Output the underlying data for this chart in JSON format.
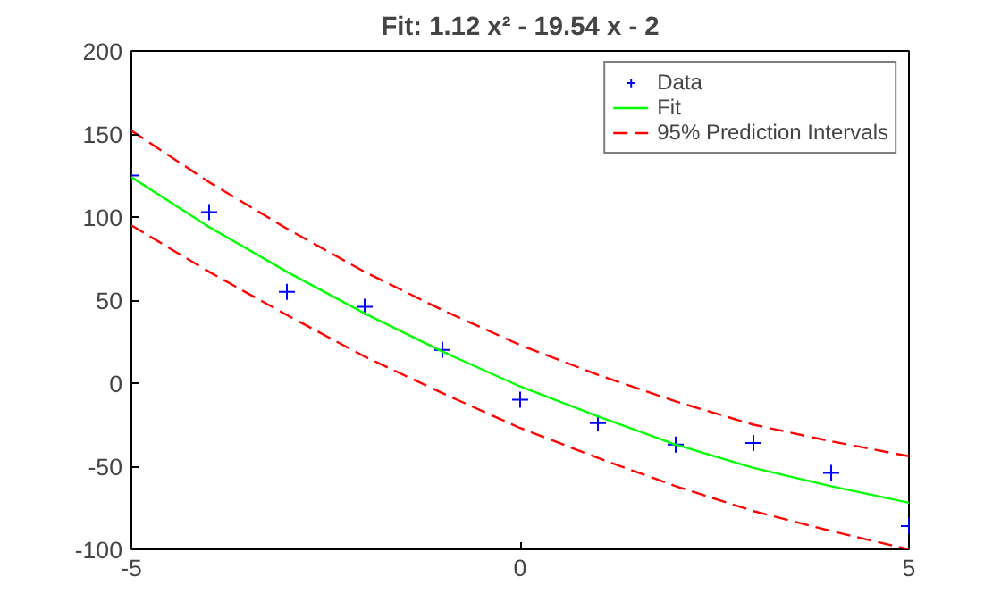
{
  "chart_data": {
    "type": "line",
    "title": "Fit: 1.12 x² - 19.54 x - 2",
    "x": [
      -5,
      -4,
      -3,
      -2,
      -1,
      0,
      1,
      2,
      3,
      4,
      5
    ],
    "series": [
      {
        "name": "Data",
        "type": "scatter",
        "marker": "cross",
        "color": "#0000ff",
        "values": [
          125,
          103,
          55,
          46,
          20,
          -10,
          -24,
          -37,
          -36,
          -54,
          -86
        ]
      },
      {
        "name": "Fit",
        "color": "#00ff00",
        "line_style": "solid",
        "values": [
          124,
          94,
          67,
          42,
          19,
          -2,
          -20,
          -37,
          -51,
          -62,
          -72
        ]
      },
      {
        "name": "95% Prediction Intervals",
        "color": "#ff0000",
        "line_style": "dashed",
        "values": [
          152,
          121,
          93,
          67,
          44,
          23,
          5,
          -11,
          -25,
          -35,
          -44
        ]
      },
      {
        "color": "#ff0000",
        "line_style": "dashed",
        "values": [
          95,
          67,
          41,
          16,
          -6,
          -27,
          -45,
          -62,
          -77,
          -89,
          -100
        ]
      }
    ],
    "xlim": [
      -5,
      5
    ],
    "xticks": [
      -5,
      0,
      5
    ],
    "ylim": [
      -100,
      200
    ],
    "yticks": [
      -100,
      -50,
      0,
      50,
      100,
      150,
      200
    ],
    "grid": false,
    "legend": "top right"
  }
}
